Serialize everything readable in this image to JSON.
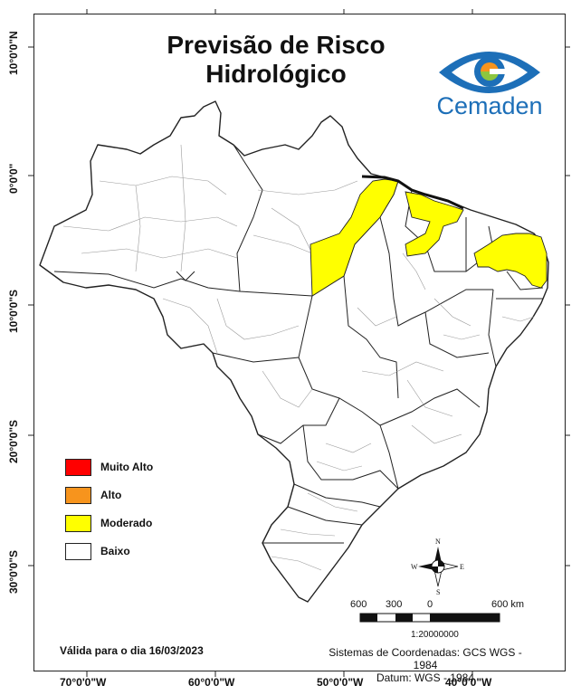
{
  "title_line1": "Previsão de Risco",
  "title_line2": "Hidrológico",
  "logo_text": "Cemaden",
  "legend": [
    {
      "label": "Muito Alto",
      "color": "#ff0000"
    },
    {
      "label": "Alto",
      "color": "#f7941d"
    },
    {
      "label": "Moderado",
      "color": "#ffff00"
    },
    {
      "label": "Baixo",
      "color": "#ffffff"
    }
  ],
  "valid_text": "Válida para o dia 16/03/2023",
  "crs_line1": "Sistemas de Coordenadas: GCS WGS - 1984",
  "crs_line2": "Datum: WGS - 1984",
  "scale": {
    "labels": [
      "600",
      "300",
      "0",
      "600 km"
    ],
    "ratio": "1:20000000"
  },
  "compass": {
    "n": "N",
    "s": "S",
    "e": "E",
    "w": "W"
  },
  "axis_x": [
    "70°0'0\"W",
    "60°0'0\"W",
    "50°0'0\"W",
    "40°0'0\"W"
  ],
  "axis_y": [
    "10°0'0\"N",
    "0°0'0\"",
    "10°0'0\"S",
    "20°0'0\"S",
    "30°0'0\"S"
  ],
  "risk_regions": [
    {
      "name": "Pará (leste)",
      "level": "Moderado"
    },
    {
      "name": "Maranhão (norte/centro)",
      "level": "Moderado"
    },
    {
      "name": "Ceará / Rio Grande do Norte / Paraíba",
      "level": "Moderado"
    }
  ]
}
